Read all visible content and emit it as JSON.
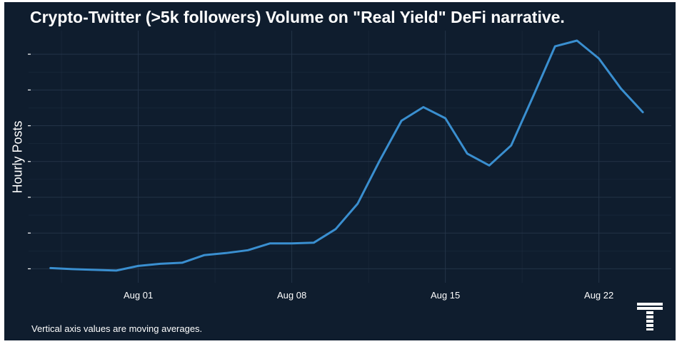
{
  "title": "Crypto-Twitter (>5k followers) Volume on \"Real Yield\" DeFi narrative.",
  "caption": "Vertical axis values are moving averages.",
  "logo_icon": "stacked-t-logo-icon",
  "colors": {
    "background": "#0f1d2e",
    "line": "#3a8fd0",
    "grid": "#26364a",
    "text": "#ffffff"
  },
  "chart_data": {
    "type": "line",
    "title": "Crypto-Twitter (>5k followers) Volume on \"Real Yield\" DeFi narrative.",
    "xlabel": "",
    "ylabel": "Hourly Posts",
    "y_tick_labels_shown": false,
    "grid": true,
    "x_ticks": [
      "Aug 01",
      "Aug 08",
      "Aug 15",
      "Aug 22"
    ],
    "x_tick_dates": [
      "2022-08-01",
      "2022-08-08",
      "2022-08-15",
      "2022-08-22"
    ],
    "x": [
      "2022-07-28",
      "2022-07-29",
      "2022-07-30",
      "2022-07-31",
      "2022-08-01",
      "2022-08-02",
      "2022-08-03",
      "2022-08-04",
      "2022-08-05",
      "2022-08-06",
      "2022-08-07",
      "2022-08-08",
      "2022-08-09",
      "2022-08-10",
      "2022-08-11",
      "2022-08-12",
      "2022-08-13",
      "2022-08-14",
      "2022-08-15",
      "2022-08-16",
      "2022-08-17",
      "2022-08-18",
      "2022-08-19",
      "2022-08-20",
      "2022-08-21",
      "2022-08-22",
      "2022-08-23",
      "2022-08-24"
    ],
    "ylim": [
      -0.35,
      6.5
    ],
    "series": [
      {
        "values": [
          0.02,
          -0.01,
          -0.03,
          -0.05,
          0.08,
          0.14,
          0.17,
          0.38,
          0.44,
          0.52,
          0.71,
          0.71,
          0.73,
          1.11,
          1.82,
          3.02,
          4.14,
          4.52,
          4.21,
          3.22,
          2.89,
          3.45,
          4.82,
          6.22,
          6.38,
          5.88,
          5.04,
          4.38
        ]
      }
    ]
  }
}
